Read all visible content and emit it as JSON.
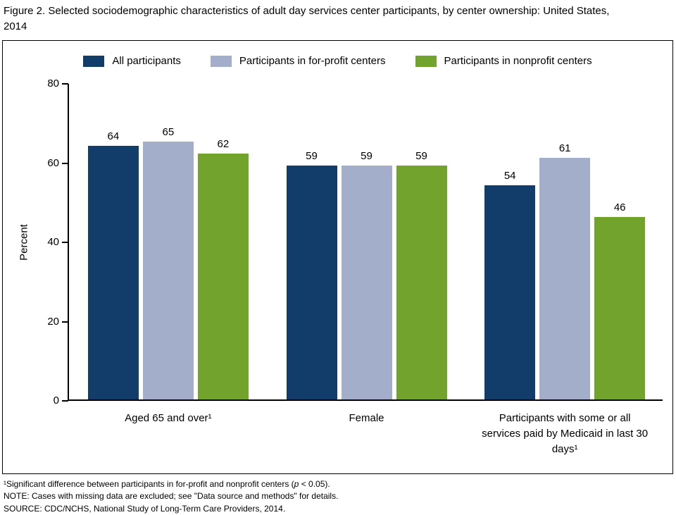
{
  "page_title": "Figure 2. Selected sociodemographic characteristics of adult day services center participants, by center ownership: United States, 2014",
  "chart_data": {
    "type": "bar",
    "title": "Selected sociodemographic characteristics of adult day services center participants, by center ownership: United States, 2014",
    "xlabel": "",
    "ylabel": "Percent",
    "ylim": [
      0,
      80
    ],
    "yticks": [
      0,
      20,
      40,
      60,
      80
    ],
    "grid": false,
    "legend_position": "top",
    "categories": [
      "Aged 65 and over¹",
      "Female",
      "Participants with some or all services paid by Medicaid in last 30 days¹"
    ],
    "series": [
      {
        "name": "All participants",
        "color": "#123d6a",
        "values": [
          64,
          59,
          54
        ]
      },
      {
        "name": "Participants in for-profit centers",
        "color": "#a3aecb",
        "values": [
          65,
          59,
          61
        ]
      },
      {
        "name": "Participants in nonprofit centers",
        "color": "#72a32d",
        "values": [
          62,
          59,
          46
        ]
      }
    ]
  },
  "footnotes": {
    "sig_pre": "¹Significant difference between participants in for-profit and nonprofit centers (",
    "sig_italic": "p",
    "sig_post": " < 0.05).",
    "note": "NOTE: Cases with missing data are excluded; see \"Data source and methods\" for details.",
    "source": "SOURCE: CDC/NCHS, National Study of Long-Term Care Providers, 2014."
  }
}
